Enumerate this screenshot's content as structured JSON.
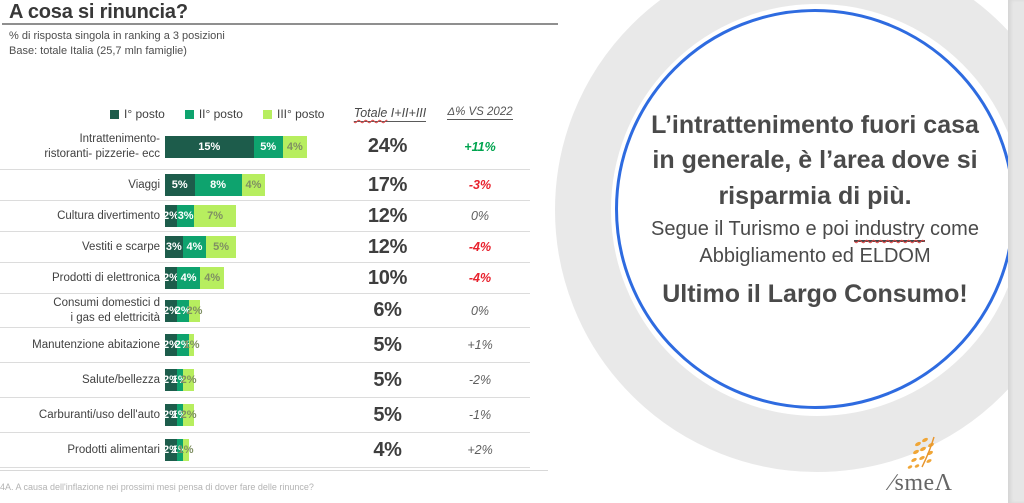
{
  "title": "A cosa si rinuncia?",
  "subtitle1": "% di risposta singola in ranking a 3 posizioni",
  "subtitle2": "Base: totale Italia (25,7 mln famiglie)",
  "legend": [
    {
      "label": "I° posto",
      "color": "#1d5c4b"
    },
    {
      "label": "II° posto",
      "color": "#0ea36e"
    },
    {
      "label": "III° posto",
      "color": "#b7ee5f"
    }
  ],
  "columns": {
    "total_word": "Totale",
    "total_rest": " I+II+III",
    "delta": "Δ% VS 2022"
  },
  "colors": {
    "serie1": "#1d5c4b",
    "serie2": "#0ea36e",
    "serie3": "#b7ee5f",
    "delta_green": "#00a44f",
    "delta_red": "#e8212d",
    "circle_border_blue": "#2e6be0",
    "logo_orange": "#f0a637"
  },
  "chart_data": {
    "type": "bar",
    "orientation": "horizontal",
    "stacked": true,
    "unit": "%",
    "title": "A cosa si rinuncia?",
    "legend_position": "top",
    "categories": [
      "Intrattenimento- ristoranti- pizzerie- ecc",
      "Viaggi",
      "Cultura divertimento",
      "Vestiti e scarpe",
      "Prodotti di elettronica",
      "Consumi domestici di gas ed elettricità",
      "Manutenzione abitazione",
      "Salute/bellezza",
      "Carburanti/uso dell'auto",
      "Prodotti alimentari"
    ],
    "display_labels": [
      "Intrattenimento-\nristoranti- pizzerie- ecc",
      "Viaggi",
      "Cultura divertimento",
      "Vestiti e scarpe",
      "Prodotti di elettronica",
      "Consumi domestici d\ni gas ed elettricità",
      "Manutenzione abitazione",
      "Salute/bellezza",
      "Carburanti/uso dell'auto",
      "Prodotti alimentari"
    ],
    "series": [
      {
        "name": "I° posto",
        "values": [
          15,
          5,
          2,
          3,
          2,
          2,
          2,
          2,
          2,
          2
        ]
      },
      {
        "name": "II° posto",
        "values": [
          5,
          8,
          3,
          4,
          4,
          2,
          2,
          1,
          1,
          1
        ]
      },
      {
        "name": "III° posto",
        "values": [
          4,
          4,
          7,
          5,
          4,
          2,
          1,
          2,
          2,
          1
        ]
      }
    ],
    "totals": [
      "24%",
      "17%",
      "12%",
      "12%",
      "10%",
      "6%",
      "5%",
      "5%",
      "5%",
      "4%"
    ],
    "deltas": [
      "+11%",
      "-3%",
      "0%",
      "-4%",
      "-4%",
      "0%",
      "+1%",
      "-2%",
      "-1%",
      "+2%"
    ],
    "delta_colors": [
      "green",
      "red",
      "gray",
      "red",
      "red",
      "gray",
      "gray",
      "gray",
      "gray",
      "gray"
    ]
  },
  "footnote": "4A. A causa dell'inflazione nei prossimi mesi pensa di dover fare delle rinunce?",
  "callout": {
    "bold1": "L’intrattenimento fuori casa in generale, è l’area dove si risparmia di più.",
    "seg_pre": "Segue il Turismo e poi ",
    "seg_word": "industry",
    "seg_post": " come Abbigliamento ed ELDOM",
    "bold2": "Ultimo il Largo Consumo!"
  },
  "logo": {
    "text": "∕smeΛ"
  }
}
